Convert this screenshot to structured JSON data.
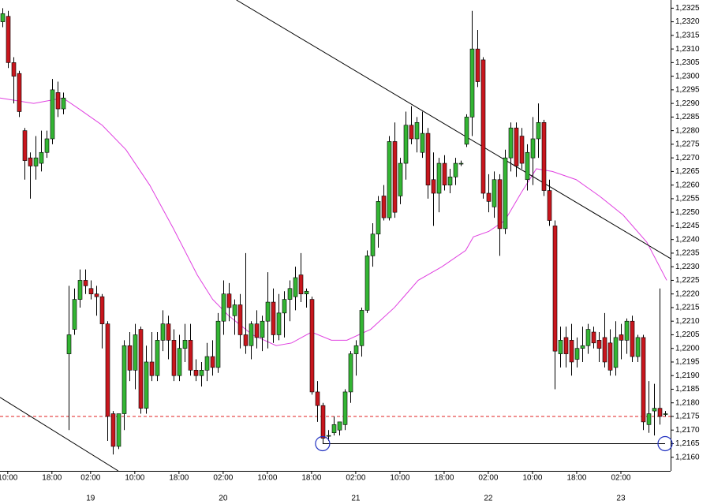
{
  "chart_data": {
    "type": "candlestick",
    "xlim": [
      -1.4,
      120
    ],
    "ylim": [
      1.2155,
      1.2328
    ],
    "up_color": "#33b533",
    "down_color": "#c8161d",
    "x": [
      -1,
      0,
      1,
      2,
      3,
      4,
      5,
      6,
      7,
      8,
      9,
      10,
      11,
      12,
      13,
      14,
      15,
      16,
      17,
      18,
      19,
      20,
      21,
      22,
      23,
      24,
      25,
      26,
      27,
      28,
      29,
      30,
      31,
      32,
      33,
      34,
      35,
      36,
      37,
      38,
      39,
      40,
      41,
      42,
      43,
      44,
      45,
      46,
      47,
      48,
      49,
      50,
      51,
      52,
      53,
      54,
      55,
      56,
      57,
      58,
      59,
      60,
      61,
      62,
      63,
      64,
      65,
      66,
      67,
      68,
      69,
      70,
      71,
      72,
      73,
      74,
      75,
      76,
      77,
      78,
      79,
      80,
      81,
      82,
      83,
      84,
      85,
      86,
      87,
      88,
      89,
      90,
      91,
      92,
      93,
      94,
      95,
      96,
      97,
      98,
      99,
      100,
      101,
      102,
      103,
      104,
      105,
      106,
      107,
      108,
      109,
      110,
      111,
      112,
      113,
      114,
      115,
      116,
      117,
      118,
      119
    ],
    "open": [
      1.232,
      1.2322,
      1.2305,
      1.2301,
      1.228,
      1.227,
      1.2267,
      1.2268,
      1.2272,
      1.2277,
      1.2294,
      1.2288,
      1.2198,
      1.2207,
      1.2218,
      1.2225,
      1.2222,
      1.222,
      1.2219,
      1.2209,
      1.2176,
      1.2164,
      1.2176,
      1.2201,
      1.2192,
      1.2207,
      1.2178,
      1.2195,
      1.219,
      1.2203,
      1.2209,
      1.2203,
      1.219,
      1.22,
      1.2203,
      1.2192,
      1.219,
      1.2192,
      1.2197,
      1.2193,
      1.221,
      1.222,
      1.2212,
      1.2216,
      1.2205,
      1.2201,
      1.2209,
      1.2204,
      1.221,
      1.2217,
      1.2205,
      1.2213,
      1.2218,
      1.2219,
      1.2227,
      1.222,
      1.2218,
      1.2184,
      1.2179,
      1.2168,
      1.2169,
      1.217,
      1.2172,
      1.2184,
      1.2198,
      1.2201,
      1.2214,
      1.2234,
      1.2242,
      1.2256,
      1.2248,
      1.2276,
      1.2256,
      1.2268,
      1.2282,
      1.2277,
      1.2272,
      1.2279,
      1.2262,
      1.2257,
      1.2268,
      1.226,
      1.2263,
      1.2268,
      1.2275,
      1.2285,
      1.231,
      1.2306,
      1.2257,
      1.2252,
      1.2262,
      1.2244,
      1.227,
      1.2281,
      1.2278,
      1.2262,
      1.227,
      1.2277,
      1.2283,
      1.2258,
      1.2245,
      1.2198,
      1.2204,
      1.2203,
      1.2196,
      1.22,
      1.2201,
      1.2206,
      1.2203,
      1.2204,
      1.2202,
      1.2193,
      1.2205,
      1.2203,
      1.221,
      1.2197,
      1.2204,
      1.2172,
      1.2177,
      1.2178,
      1.2176
    ],
    "high": [
      1.2325,
      1.2324,
      1.2307,
      1.2302,
      1.2281,
      1.2272,
      1.2278,
      1.228,
      1.228,
      1.2299,
      1.2298,
      1.2294,
      1.2223,
      1.2222,
      1.2229,
      1.2229,
      1.2225,
      1.2223,
      1.222,
      1.221,
      1.2177,
      1.2176,
      1.2203,
      1.2206,
      1.2209,
      1.2208,
      1.2201,
      1.2206,
      1.2206,
      1.2214,
      1.2212,
      1.2207,
      1.2205,
      1.2209,
      1.2209,
      1.2196,
      1.2195,
      1.2202,
      1.2203,
      1.2213,
      1.2225,
      1.2224,
      1.2218,
      1.222,
      1.2235,
      1.221,
      1.2214,
      1.2212,
      1.2228,
      1.2222,
      1.222,
      1.2221,
      1.2225,
      1.223,
      1.2235,
      1.2222,
      1.2219,
      1.2188,
      1.218,
      1.217,
      1.2175,
      1.2173,
      1.2185,
      1.2199,
      1.2203,
      1.2215,
      1.2236,
      1.2246,
      1.2256,
      1.226,
      1.2278,
      1.2283,
      1.227,
      1.2287,
      1.2289,
      1.2285,
      1.2287,
      1.2281,
      1.2272,
      1.227,
      1.2271,
      1.2266,
      1.227,
      1.2269,
      1.2286,
      1.2324,
      1.2317,
      1.2307,
      1.2264,
      1.2265,
      1.2264,
      1.2273,
      1.2283,
      1.2283,
      1.2281,
      1.2275,
      1.2285,
      1.229,
      1.2284,
      1.2262,
      1.2247,
      1.2208,
      1.2208,
      1.2209,
      1.2204,
      1.2208,
      1.2209,
      1.2208,
      1.2206,
      1.2213,
      1.2207,
      1.221,
      1.2209,
      1.2211,
      1.2212,
      1.2205,
      1.2205,
      1.2188,
      1.2187,
      1.2222,
      1.2177
    ],
    "low": [
      1.2318,
      1.2303,
      1.229,
      1.2285,
      1.2262,
      1.2255,
      1.2262,
      1.2265,
      1.227,
      1.2275,
      1.2285,
      1.2286,
      1.217,
      1.2205,
      1.2215,
      1.222,
      1.2218,
      1.2212,
      1.22,
      1.2166,
      1.2161,
      1.2163,
      1.217,
      1.2188,
      1.2185,
      1.2176,
      1.2176,
      1.2188,
      1.2188,
      1.2199,
      1.2196,
      1.2188,
      1.2188,
      1.2195,
      1.219,
      1.2188,
      1.2186,
      1.2188,
      1.219,
      1.2191,
      1.2205,
      1.221,
      1.2205,
      1.22,
      1.2198,
      1.2196,
      1.22,
      1.2199,
      1.22,
      1.2202,
      1.2203,
      1.2204,
      1.221,
      1.2214,
      1.2217,
      1.2215,
      1.2183,
      1.2173,
      1.2165,
      1.2166,
      1.2168,
      1.2168,
      1.217,
      1.218,
      1.219,
      1.2197,
      1.2213,
      1.223,
      1.2237,
      1.2247,
      1.2247,
      1.2248,
      1.2253,
      1.2262,
      1.2275,
      1.2272,
      1.227,
      1.2255,
      1.2245,
      1.225,
      1.2258,
      1.2257,
      1.226,
      1.2267,
      1.2274,
      1.2278,
      1.2296,
      1.2255,
      1.225,
      1.2248,
      1.2234,
      1.2242,
      1.2265,
      1.2263,
      1.2266,
      1.2258,
      1.226,
      1.227,
      1.2256,
      1.2245,
      1.2185,
      1.2193,
      1.2193,
      1.219,
      1.2193,
      1.2195,
      1.2198,
      1.22,
      1.2195,
      1.2193,
      1.219,
      1.219,
      1.2196,
      1.2198,
      1.2195,
      1.2195,
      1.217,
      1.2169,
      1.2168,
      1.2172,
      1.2175
    ],
    "close": [
      1.2323,
      1.2305,
      1.23,
      1.2287,
      1.2269,
      1.2267,
      1.227,
      1.2272,
      1.2277,
      1.2295,
      1.2288,
      1.2292,
      1.2205,
      1.2218,
      1.2225,
      1.2223,
      1.222,
      1.2219,
      1.2209,
      1.2175,
      1.2164,
      1.2176,
      1.2201,
      1.2192,
      1.2205,
      1.2178,
      1.2195,
      1.219,
      1.2203,
      1.2209,
      1.2203,
      1.219,
      1.22,
      1.2203,
      1.2192,
      1.219,
      1.2192,
      1.2197,
      1.2193,
      1.221,
      1.222,
      1.2215,
      1.2216,
      1.2205,
      1.2201,
      1.2209,
      1.2204,
      1.221,
      1.2217,
      1.2205,
      1.2213,
      1.2218,
      1.2222,
      1.2226,
      1.222,
      1.2221,
      1.2184,
      1.2179,
      1.2167,
      1.2168,
      1.2172,
      1.2173,
      1.2184,
      1.2198,
      1.2201,
      1.2214,
      1.2234,
      1.2242,
      1.2254,
      1.2248,
      1.2276,
      1.225,
      1.2268,
      1.2282,
      1.2277,
      1.2283,
      1.2279,
      1.226,
      1.2257,
      1.2268,
      1.226,
      1.2263,
      1.2268,
      1.2268,
      1.2285,
      1.231,
      1.2298,
      1.2257,
      1.2254,
      1.2262,
      1.2244,
      1.227,
      1.2281,
      1.2267,
      1.2268,
      1.2272,
      1.2277,
      1.2283,
      1.2258,
      1.2247,
      1.2199,
      1.2203,
      1.2198,
      1.2195,
      1.22,
      1.2201,
      1.2207,
      1.2202,
      1.22,
      1.2195,
      1.2192,
      1.2204,
      1.2203,
      1.221,
      1.2197,
      1.2204,
      1.2173,
      1.2176,
      1.2178,
      1.2175,
      1.2176
    ],
    "moving_average": {
      "color": "#e040e0",
      "x": [
        -1.4,
        4.7,
        10,
        12.9,
        17.1,
        21.4,
        25.7,
        30,
        34.3,
        37.1,
        40,
        44.3,
        48.6,
        51.4,
        55,
        58.6,
        61.4,
        65.7,
        70,
        74.3,
        78.6,
        82.9,
        84.3,
        87.1,
        90,
        92.9,
        95.7,
        98.6,
        102.9,
        107.1,
        111.4,
        115.7,
        119.3
      ],
      "values": [
        1.2292,
        1.229,
        1.2292,
        1.2288,
        1.2282,
        1.2273,
        1.226,
        1.2244,
        1.2227,
        1.2218,
        1.2212,
        1.2205,
        1.2201,
        1.2202,
        1.2206,
        1.2203,
        1.2203,
        1.2207,
        1.2215,
        1.2225,
        1.223,
        1.2236,
        1.2241,
        1.2243,
        1.2247,
        1.2257,
        1.2266,
        1.2265,
        1.2262,
        1.2256,
        1.2249,
        1.2239,
        1.2225
      ]
    },
    "trendlines": [
      {
        "x": [
          41.4,
          120
        ],
        "values": [
          1.2328,
          1.2233
        ]
      },
      {
        "x": [
          -1.4,
          20
        ],
        "values": [
          1.2182,
          1.2155
        ]
      }
    ],
    "support_line": {
      "x": [
        57,
        119
      ],
      "values": [
        1.2165,
        1.2165
      ]
    },
    "circle_markers": {
      "x": [
        57,
        119
      ],
      "values": [
        1.2165,
        1.2165
      ]
    },
    "current_price": 1.2175,
    "yticks": [
      {
        "value": 1.216,
        "label": "1,2160"
      },
      {
        "value": 1.2165,
        "label": "1,2165"
      },
      {
        "value": 1.217,
        "label": "1,2170"
      },
      {
        "value": 1.2175,
        "label": "1,2175"
      },
      {
        "value": 1.218,
        "label": "1,2180"
      },
      {
        "value": 1.2185,
        "label": "1,2185"
      },
      {
        "value": 1.219,
        "label": "1,2190"
      },
      {
        "value": 1.2195,
        "label": "1,2195"
      },
      {
        "value": 1.22,
        "label": "1,2200"
      },
      {
        "value": 1.2205,
        "label": "1,2205"
      },
      {
        "value": 1.221,
        "label": "1,2210"
      },
      {
        "value": 1.2215,
        "label": "1,2215"
      },
      {
        "value": 1.222,
        "label": "1,2220"
      },
      {
        "value": 1.2225,
        "label": "1,2225"
      },
      {
        "value": 1.223,
        "label": "1,2230"
      },
      {
        "value": 1.2235,
        "label": "1,2235"
      },
      {
        "value": 1.224,
        "label": "1,2240"
      },
      {
        "value": 1.2245,
        "label": "1,2245"
      },
      {
        "value": 1.225,
        "label": "1,2250"
      },
      {
        "value": 1.2255,
        "label": "1,2255"
      },
      {
        "value": 1.226,
        "label": "1,2260"
      },
      {
        "value": 1.2265,
        "label": "1,2265"
      },
      {
        "value": 1.227,
        "label": "1,2270"
      },
      {
        "value": 1.2275,
        "label": "1,2275"
      },
      {
        "value": 1.228,
        "label": "1,2280"
      },
      {
        "value": 1.2285,
        "label": "1,2285"
      },
      {
        "value": 1.229,
        "label": "1,2290"
      },
      {
        "value": 1.2295,
        "label": "1,2295"
      },
      {
        "value": 1.23,
        "label": "1,2300"
      },
      {
        "value": 1.2305,
        "label": "1,2305"
      },
      {
        "value": 1.231,
        "label": "1,2310"
      },
      {
        "value": 1.2315,
        "label": "1,2315"
      },
      {
        "value": 1.232,
        "label": "1,2320"
      },
      {
        "value": 1.2325,
        "label": "1,2325"
      }
    ],
    "xticks": [
      {
        "value": 0,
        "label": "10:00"
      },
      {
        "value": 8,
        "label": "18:00"
      },
      {
        "value": 15,
        "label": "02:00"
      },
      {
        "value": 23,
        "label": "10:00"
      },
      {
        "value": 31,
        "label": "18:00"
      },
      {
        "value": 39,
        "label": "02:00"
      },
      {
        "value": 47,
        "label": "10:00"
      },
      {
        "value": 55,
        "label": "18:00"
      },
      {
        "value": 63,
        "label": "02:00"
      },
      {
        "value": 71,
        "label": "10:00"
      },
      {
        "value": 79,
        "label": "18:00"
      },
      {
        "value": 87,
        "label": "02:00"
      },
      {
        "value": 95,
        "label": "10:00"
      },
      {
        "value": 103,
        "label": "18:00"
      },
      {
        "value": 111,
        "label": "02:00"
      }
    ],
    "day_labels": [
      {
        "value": 15,
        "label": "19"
      },
      {
        "value": 39,
        "label": "20"
      },
      {
        "value": 63,
        "label": "21"
      },
      {
        "value": 87,
        "label": "22"
      },
      {
        "value": 111,
        "label": "23"
      }
    ]
  }
}
